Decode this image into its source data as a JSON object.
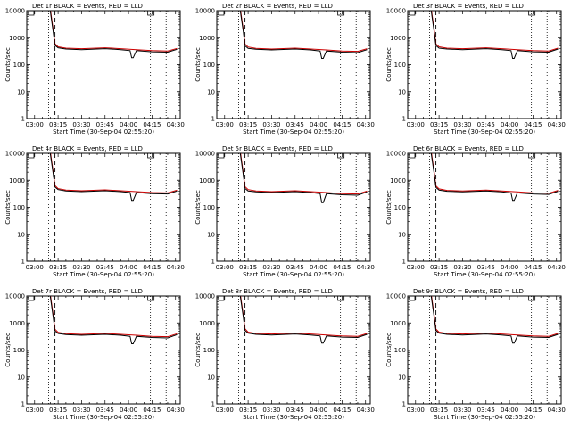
{
  "chart_data": [
    {
      "type": "line",
      "title": "Det 1r BLACK = Events, RED = LLD",
      "xlabel": "Start Time (30-Sep-04 02:55:20)",
      "ylabel": "Counts/sec",
      "yscale": "log",
      "ylim": [
        1,
        10000
      ],
      "x_tick_labels": [
        "03:00",
        "03:15",
        "03:30",
        "03:45",
        "04:00",
        "04:15",
        "04:30"
      ],
      "y_tick_labels": [
        "1",
        "10",
        "100",
        "1000",
        "10000"
      ],
      "xlim": [
        "02:55",
        "04:33"
      ],
      "dotted_lines_at": [
        "03:09",
        "04:14",
        "04:24"
      ],
      "dashed_line_at": "03:13",
      "series": [
        {
          "name": "Events",
          "color": "#000000",
          "x": [
            "03:10",
            "03:12",
            "03:13",
            "03:15",
            "03:20",
            "03:30",
            "03:45",
            "03:55",
            "04:01",
            "04:02",
            "04:03",
            "04:05",
            "04:15",
            "04:25",
            "04:31"
          ],
          "y": [
            10000,
            1500,
            520,
            420,
            380,
            360,
            390,
            360,
            330,
            180,
            180,
            330,
            300,
            290,
            370
          ]
        },
        {
          "name": "LLD",
          "color": "#cc0000",
          "x": [
            "03:10",
            "03:12",
            "03:13",
            "03:15",
            "03:20",
            "03:30",
            "03:45",
            "03:55",
            "04:05",
            "04:15",
            "04:25",
            "04:31"
          ],
          "y": [
            12000,
            1800,
            600,
            460,
            410,
            390,
            420,
            390,
            360,
            330,
            320,
            400
          ]
        }
      ]
    },
    {
      "type": "line",
      "title": "Det 2r BLACK = Events, RED = LLD",
      "xlabel": "Start Time (30-Sep-04 02:55:20)",
      "ylabel": "Counts/sec",
      "yscale": "log",
      "ylim": [
        1,
        10000
      ],
      "x_tick_labels": [
        "03:00",
        "03:15",
        "03:30",
        "03:45",
        "04:00",
        "04:15",
        "04:30"
      ],
      "y_tick_labels": [
        "1",
        "10",
        "100",
        "1000",
        "10000"
      ],
      "xlim": [
        "02:55",
        "04:33"
      ],
      "dotted_lines_at": [
        "03:09",
        "04:14",
        "04:24"
      ],
      "dashed_line_at": "03:13",
      "series": [
        {
          "name": "Events",
          "color": "#000000",
          "x": [
            "03:10",
            "03:12",
            "03:13",
            "03:15",
            "03:20",
            "03:30",
            "03:45",
            "03:55",
            "04:01",
            "04:02",
            "04:03",
            "04:05",
            "04:15",
            "04:25",
            "04:31"
          ],
          "y": [
            10000,
            1600,
            500,
            400,
            370,
            350,
            380,
            350,
            320,
            170,
            170,
            320,
            290,
            280,
            360
          ]
        },
        {
          "name": "LLD",
          "color": "#cc0000",
          "x": [
            "03:10",
            "03:12",
            "03:13",
            "03:15",
            "03:20",
            "03:30",
            "03:45",
            "03:55",
            "04:05",
            "04:15",
            "04:25",
            "04:31"
          ],
          "y": [
            12000,
            1900,
            580,
            450,
            400,
            380,
            410,
            380,
            350,
            320,
            310,
            390
          ]
        }
      ]
    },
    {
      "type": "line",
      "title": "Det 3r BLACK = Events, RED = LLD",
      "xlabel": "Start Time (30-Sep-04 02:55:20)",
      "ylabel": "Counts/sec",
      "yscale": "log",
      "ylim": [
        1,
        10000
      ],
      "x_tick_labels": [
        "03:00",
        "03:15",
        "03:30",
        "03:45",
        "04:00",
        "04:15",
        "04:30"
      ],
      "y_tick_labels": [
        "1",
        "10",
        "100",
        "1000",
        "10000"
      ],
      "xlim": [
        "02:55",
        "04:33"
      ],
      "dotted_lines_at": [
        "03:09",
        "04:14",
        "04:24"
      ],
      "dashed_line_at": "03:13",
      "series": [
        {
          "name": "Events",
          "color": "#000000",
          "x": [
            "03:10",
            "03:12",
            "03:13",
            "03:15",
            "03:20",
            "03:30",
            "03:45",
            "03:55",
            "04:01",
            "04:02",
            "04:03",
            "04:05",
            "04:15",
            "04:25",
            "04:31"
          ],
          "y": [
            10000,
            1500,
            510,
            410,
            380,
            360,
            390,
            360,
            330,
            170,
            170,
            330,
            300,
            290,
            380
          ]
        },
        {
          "name": "LLD",
          "color": "#cc0000",
          "x": [
            "03:10",
            "03:12",
            "03:13",
            "03:15",
            "03:20",
            "03:30",
            "03:45",
            "03:55",
            "04:05",
            "04:15",
            "04:25",
            "04:31"
          ],
          "y": [
            12000,
            1800,
            590,
            460,
            410,
            390,
            420,
            390,
            360,
            330,
            320,
            410
          ]
        }
      ]
    },
    {
      "type": "line",
      "title": "Det 4r BLACK = Events, RED = LLD",
      "xlabel": "Start Time (30-Sep-04 02:55:20)",
      "ylabel": "Counts/sec",
      "yscale": "log",
      "ylim": [
        1,
        10000
      ],
      "x_tick_labels": [
        "03:00",
        "03:15",
        "03:30",
        "03:45",
        "04:00",
        "04:15",
        "04:30"
      ],
      "y_tick_labels": [
        "1",
        "10",
        "100",
        "1000",
        "10000"
      ],
      "xlim": [
        "02:55",
        "04:33"
      ],
      "dotted_lines_at": [
        "03:09",
        "04:14",
        "04:24"
      ],
      "dashed_line_at": "03:13",
      "series": [
        {
          "name": "Events",
          "color": "#000000",
          "x": [
            "03:10",
            "03:12",
            "03:13",
            "03:15",
            "03:20",
            "03:30",
            "03:45",
            "03:55",
            "04:01",
            "04:02",
            "04:03",
            "04:05",
            "04:15",
            "04:25",
            "04:31"
          ],
          "y": [
            10000,
            1600,
            560,
            450,
            400,
            380,
            410,
            380,
            350,
            180,
            180,
            350,
            320,
            310,
            400
          ]
        },
        {
          "name": "LLD",
          "color": "#cc0000",
          "x": [
            "03:10",
            "03:12",
            "03:13",
            "03:15",
            "03:20",
            "03:30",
            "03:45",
            "03:55",
            "04:05",
            "04:15",
            "04:25",
            "04:31"
          ],
          "y": [
            12000,
            1900,
            640,
            490,
            430,
            410,
            440,
            410,
            380,
            350,
            340,
            430
          ]
        }
      ]
    },
    {
      "type": "line",
      "title": "Det 5r BLACK = Events, RED = LLD",
      "xlabel": "Start Time (30-Sep-04 02:55:20)",
      "ylabel": "Counts/sec",
      "yscale": "log",
      "ylim": [
        1,
        10000
      ],
      "x_tick_labels": [
        "03:00",
        "03:15",
        "03:30",
        "03:45",
        "04:00",
        "04:15",
        "04:30"
      ],
      "y_tick_labels": [
        "1",
        "10",
        "100",
        "1000",
        "10000"
      ],
      "xlim": [
        "02:55",
        "04:33"
      ],
      "dotted_lines_at": [
        "03:09",
        "04:14",
        "04:24"
      ],
      "dashed_line_at": "03:13",
      "series": [
        {
          "name": "Events",
          "color": "#000000",
          "x": [
            "03:10",
            "03:12",
            "03:13",
            "03:15",
            "03:20",
            "03:30",
            "03:45",
            "03:55",
            "04:01",
            "04:02",
            "04:03",
            "04:05",
            "04:15",
            "04:25",
            "04:31"
          ],
          "y": [
            10000,
            1500,
            500,
            400,
            370,
            350,
            380,
            350,
            320,
            150,
            150,
            320,
            290,
            280,
            370
          ]
        },
        {
          "name": "LLD",
          "color": "#cc0000",
          "x": [
            "03:10",
            "03:12",
            "03:13",
            "03:15",
            "03:20",
            "03:30",
            "03:45",
            "03:55",
            "04:05",
            "04:15",
            "04:25",
            "04:31"
          ],
          "y": [
            12000,
            1800,
            580,
            450,
            400,
            380,
            410,
            380,
            350,
            320,
            310,
            400
          ]
        }
      ]
    },
    {
      "type": "line",
      "title": "Det 6r BLACK = Events, RED = LLD",
      "xlabel": "Start Time (30-Sep-04 02:55:20)",
      "ylabel": "Counts/sec",
      "yscale": "log",
      "ylim": [
        1,
        10000
      ],
      "x_tick_labels": [
        "03:00",
        "03:15",
        "03:30",
        "03:45",
        "04:00",
        "04:15",
        "04:30"
      ],
      "y_tick_labels": [
        "1",
        "10",
        "100",
        "1000",
        "10000"
      ],
      "xlim": [
        "02:55",
        "04:33"
      ],
      "dotted_lines_at": [
        "03:09",
        "04:14",
        "04:24"
      ],
      "dashed_line_at": "03:13",
      "series": [
        {
          "name": "Events",
          "color": "#000000",
          "x": [
            "03:10",
            "03:12",
            "03:13",
            "03:15",
            "03:20",
            "03:30",
            "03:45",
            "03:55",
            "04:01",
            "04:02",
            "04:03",
            "04:05",
            "04:15",
            "04:25",
            "04:31"
          ],
          "y": [
            10000,
            1600,
            540,
            430,
            390,
            370,
            400,
            370,
            340,
            180,
            180,
            340,
            310,
            300,
            390
          ]
        },
        {
          "name": "LLD",
          "color": "#cc0000",
          "x": [
            "03:10",
            "03:12",
            "03:13",
            "03:15",
            "03:20",
            "03:30",
            "03:45",
            "03:55",
            "04:05",
            "04:15",
            "04:25",
            "04:31"
          ],
          "y": [
            12000,
            1900,
            620,
            480,
            420,
            400,
            430,
            400,
            370,
            340,
            330,
            420
          ]
        }
      ]
    },
    {
      "type": "line",
      "title": "Det 7r BLACK = Events, RED = LLD",
      "xlabel": "Start Time (30-Sep-04 02:55:20)",
      "ylabel": "Counts/sec",
      "yscale": "log",
      "ylim": [
        1,
        10000
      ],
      "x_tick_labels": [
        "03:00",
        "03:15",
        "03:30",
        "03:45",
        "04:00",
        "04:15",
        "04:30"
      ],
      "y_tick_labels": [
        "1",
        "10",
        "100",
        "1000",
        "10000"
      ],
      "xlim": [
        "02:55",
        "04:33"
      ],
      "dotted_lines_at": [
        "03:09",
        "04:14",
        "04:24"
      ],
      "dashed_line_at": "03:13",
      "series": [
        {
          "name": "Events",
          "color": "#000000",
          "x": [
            "03:10",
            "03:12",
            "03:13",
            "03:15",
            "03:20",
            "03:30",
            "03:45",
            "03:55",
            "04:01",
            "04:02",
            "04:03",
            "04:05",
            "04:15",
            "04:25",
            "04:31"
          ],
          "y": [
            10000,
            1500,
            510,
            410,
            370,
            350,
            380,
            350,
            320,
            170,
            170,
            320,
            290,
            280,
            370
          ]
        },
        {
          "name": "LLD",
          "color": "#cc0000",
          "x": [
            "03:10",
            "03:12",
            "03:13",
            "03:15",
            "03:20",
            "03:30",
            "03:45",
            "03:55",
            "04:05",
            "04:15",
            "04:25",
            "04:31"
          ],
          "y": [
            12000,
            1800,
            590,
            450,
            400,
            380,
            410,
            380,
            350,
            320,
            310,
            400
          ]
        }
      ]
    },
    {
      "type": "line",
      "title": "Det 8r BLACK = Events, RED = LLD",
      "xlabel": "Start Time (30-Sep-04 02:55:20)",
      "ylabel": "Counts/sec",
      "yscale": "log",
      "ylim": [
        1,
        10000
      ],
      "x_tick_labels": [
        "03:00",
        "03:15",
        "03:30",
        "03:45",
        "04:00",
        "04:15",
        "04:30"
      ],
      "y_tick_labels": [
        "1",
        "10",
        "100",
        "1000",
        "10000"
      ],
      "xlim": [
        "02:55",
        "04:33"
      ],
      "dotted_lines_at": [
        "03:09",
        "04:14",
        "04:24"
      ],
      "dashed_line_at": "03:13",
      "series": [
        {
          "name": "Events",
          "color": "#000000",
          "x": [
            "03:10",
            "03:12",
            "03:13",
            "03:15",
            "03:20",
            "03:30",
            "03:45",
            "03:55",
            "04:01",
            "04:02",
            "04:03",
            "04:05",
            "04:15",
            "04:25",
            "04:31"
          ],
          "y": [
            10000,
            1600,
            530,
            420,
            380,
            360,
            390,
            360,
            330,
            180,
            180,
            330,
            300,
            290,
            380
          ]
        },
        {
          "name": "LLD",
          "color": "#cc0000",
          "x": [
            "03:10",
            "03:12",
            "03:13",
            "03:15",
            "03:20",
            "03:30",
            "03:45",
            "03:55",
            "04:05",
            "04:15",
            "04:25",
            "04:31"
          ],
          "y": [
            12000,
            1900,
            610,
            460,
            410,
            390,
            420,
            390,
            360,
            330,
            320,
            410
          ]
        }
      ]
    },
    {
      "type": "line",
      "title": "Det 9r BLACK = Events, RED = LLD",
      "xlabel": "Start Time (30-Sep-04 02:55:20)",
      "ylabel": "Counts/sec",
      "yscale": "log",
      "ylim": [
        1,
        10000
      ],
      "x_tick_labels": [
        "03:00",
        "03:15",
        "03:30",
        "03:45",
        "04:00",
        "04:15",
        "04:30"
      ],
      "y_tick_labels": [
        "1",
        "10",
        "100",
        "1000",
        "10000"
      ],
      "xlim": [
        "02:55",
        "04:33"
      ],
      "dotted_lines_at": [
        "03:09",
        "04:14",
        "04:24"
      ],
      "dashed_line_at": "03:13",
      "series": [
        {
          "name": "Events",
          "color": "#000000",
          "x": [
            "03:10",
            "03:12",
            "03:13",
            "03:15",
            "03:20",
            "03:30",
            "03:45",
            "03:55",
            "04:01",
            "04:02",
            "04:03",
            "04:05",
            "04:15",
            "04:25",
            "04:31"
          ],
          "y": [
            10000,
            1500,
            520,
            420,
            380,
            360,
            390,
            360,
            330,
            180,
            180,
            330,
            300,
            290,
            380
          ]
        },
        {
          "name": "LLD",
          "color": "#cc0000",
          "x": [
            "03:10",
            "03:12",
            "03:13",
            "03:15",
            "03:20",
            "03:30",
            "03:45",
            "03:55",
            "04:05",
            "04:15",
            "04:25",
            "04:31"
          ],
          "y": [
            12000,
            1800,
            600,
            460,
            410,
            390,
            420,
            390,
            360,
            330,
            320,
            410
          ]
        }
      ]
    }
  ]
}
